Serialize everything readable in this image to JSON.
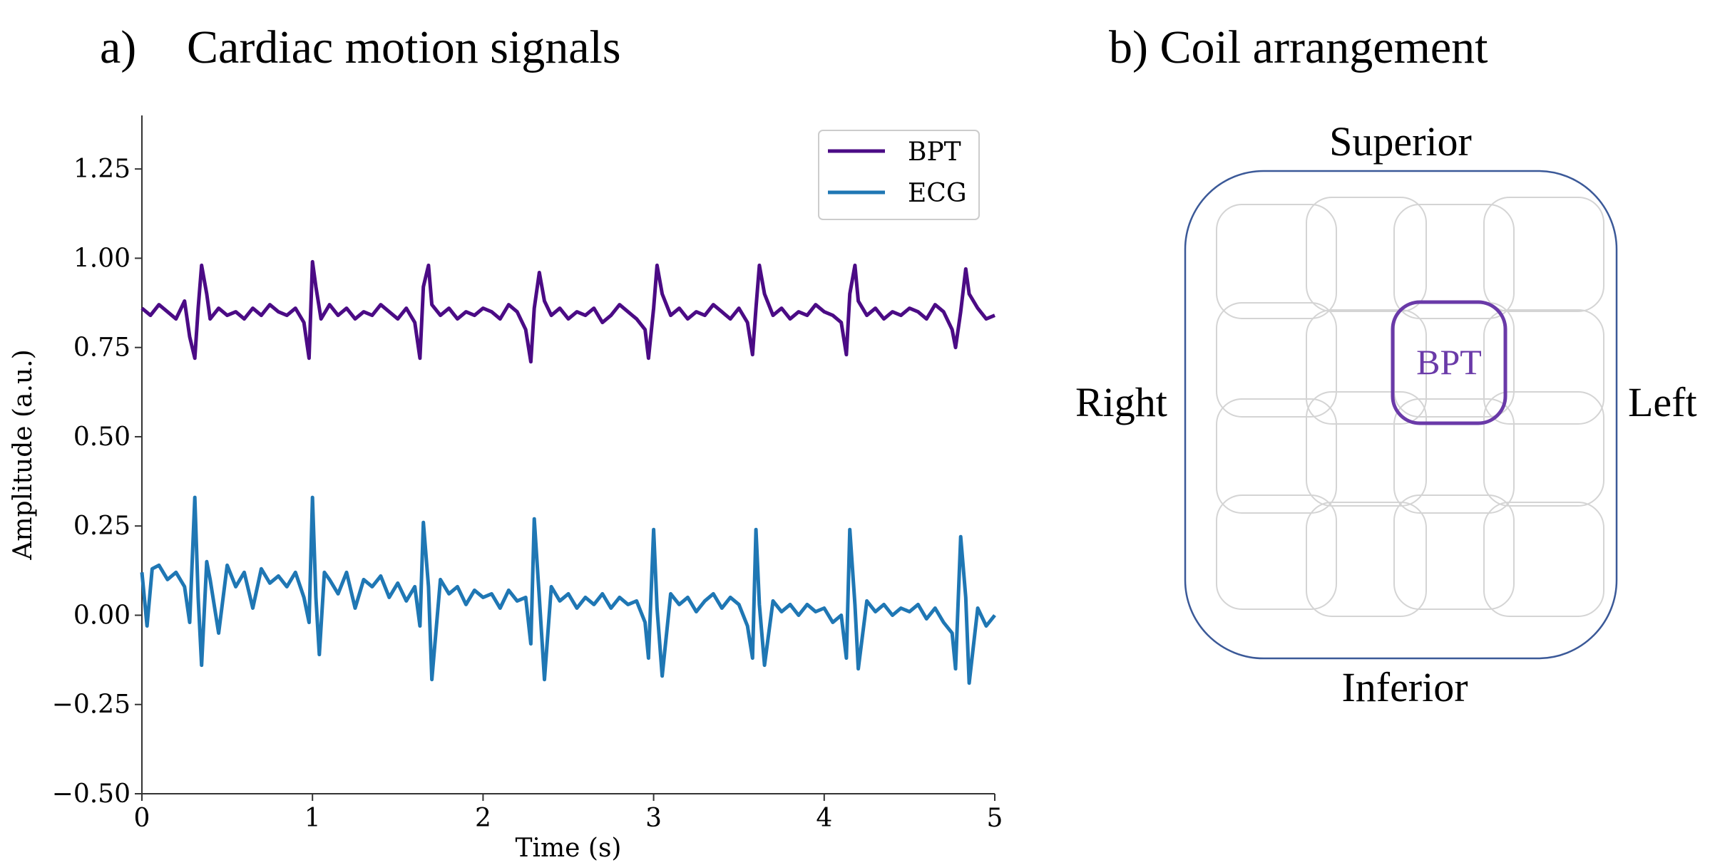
{
  "panel_a": {
    "label": "a)",
    "title": "Cardiac motion signals"
  },
  "panel_b": {
    "title": "b) Coil arrangement",
    "labels": {
      "top": "Superior",
      "bottom": "Inferior",
      "left": "Right",
      "right": "Left"
    },
    "highlight_label": "BPT",
    "colors": {
      "body": "#3b5998",
      "coil": "#d4d4d4",
      "highlight": "#6a3aa8"
    }
  },
  "chart_data": {
    "type": "line",
    "title": "Cardiac motion signals",
    "xlabel": "Time (s)",
    "ylabel": "Amplitude (a.u.)",
    "xlim": [
      0,
      5
    ],
    "ylim": [
      -0.5,
      1.4
    ],
    "xticks": [
      0,
      1,
      2,
      3,
      4,
      5
    ],
    "xtick_labels": [
      "0",
      "1",
      "2",
      "3",
      "4",
      "5"
    ],
    "yticks": [
      -0.5,
      -0.25,
      0,
      0.25,
      0.5,
      0.75,
      1.0,
      1.25
    ],
    "ytick_labels": [
      "−0.50",
      "−0.25",
      "0.00",
      "0.25",
      "0.50",
      "0.75",
      "1.00",
      "1.25"
    ],
    "grid": false,
    "legend_position": "top-right",
    "series": [
      {
        "name": "BPT",
        "color": "#4b0b85",
        "x": [
          0,
          0.05,
          0.1,
          0.15,
          0.2,
          0.25,
          0.28,
          0.31,
          0.33,
          0.35,
          0.38,
          0.4,
          0.45,
          0.5,
          0.55,
          0.6,
          0.65,
          0.7,
          0.75,
          0.8,
          0.85,
          0.9,
          0.95,
          0.98,
          1.0,
          1.02,
          1.05,
          1.1,
          1.15,
          1.2,
          1.25,
          1.3,
          1.35,
          1.4,
          1.45,
          1.5,
          1.55,
          1.6,
          1.63,
          1.65,
          1.68,
          1.7,
          1.75,
          1.8,
          1.85,
          1.9,
          1.95,
          2.0,
          2.05,
          2.1,
          2.15,
          2.2,
          2.25,
          2.28,
          2.3,
          2.33,
          2.36,
          2.4,
          2.45,
          2.5,
          2.55,
          2.6,
          2.65,
          2.7,
          2.75,
          2.8,
          2.85,
          2.9,
          2.95,
          2.97,
          3.0,
          3.02,
          3.05,
          3.1,
          3.15,
          3.2,
          3.25,
          3.3,
          3.35,
          3.4,
          3.45,
          3.5,
          3.55,
          3.58,
          3.6,
          3.62,
          3.65,
          3.7,
          3.75,
          3.8,
          3.85,
          3.9,
          3.95,
          4.0,
          4.05,
          4.1,
          4.13,
          4.15,
          4.18,
          4.2,
          4.25,
          4.3,
          4.35,
          4.4,
          4.45,
          4.5,
          4.55,
          4.6,
          4.65,
          4.7,
          4.75,
          4.77,
          4.8,
          4.83,
          4.85,
          4.9,
          4.95,
          5.0
        ],
        "y": [
          0.86,
          0.84,
          0.87,
          0.85,
          0.83,
          0.88,
          0.78,
          0.72,
          0.86,
          0.98,
          0.9,
          0.83,
          0.86,
          0.84,
          0.85,
          0.83,
          0.86,
          0.84,
          0.87,
          0.85,
          0.84,
          0.86,
          0.82,
          0.72,
          0.99,
          0.92,
          0.83,
          0.87,
          0.84,
          0.86,
          0.83,
          0.85,
          0.84,
          0.87,
          0.85,
          0.83,
          0.86,
          0.82,
          0.72,
          0.92,
          0.98,
          0.87,
          0.84,
          0.86,
          0.83,
          0.85,
          0.84,
          0.86,
          0.85,
          0.83,
          0.87,
          0.85,
          0.8,
          0.71,
          0.86,
          0.96,
          0.88,
          0.84,
          0.86,
          0.83,
          0.85,
          0.84,
          0.86,
          0.82,
          0.84,
          0.87,
          0.85,
          0.83,
          0.8,
          0.72,
          0.86,
          0.98,
          0.9,
          0.84,
          0.86,
          0.83,
          0.85,
          0.84,
          0.87,
          0.85,
          0.83,
          0.86,
          0.82,
          0.73,
          0.86,
          0.98,
          0.9,
          0.84,
          0.86,
          0.83,
          0.85,
          0.84,
          0.87,
          0.85,
          0.84,
          0.82,
          0.73,
          0.9,
          0.98,
          0.88,
          0.84,
          0.86,
          0.83,
          0.85,
          0.84,
          0.86,
          0.85,
          0.83,
          0.87,
          0.85,
          0.8,
          0.75,
          0.85,
          0.97,
          0.9,
          0.86,
          0.83,
          0.84
        ]
      },
      {
        "name": "ECG",
        "color": "#1f77b4",
        "x": [
          0,
          0.03,
          0.06,
          0.1,
          0.15,
          0.2,
          0.25,
          0.28,
          0.31,
          0.33,
          0.35,
          0.38,
          0.4,
          0.45,
          0.5,
          0.55,
          0.6,
          0.65,
          0.7,
          0.75,
          0.8,
          0.85,
          0.9,
          0.95,
          0.98,
          1.0,
          1.02,
          1.04,
          1.07,
          1.1,
          1.15,
          1.2,
          1.25,
          1.3,
          1.35,
          1.4,
          1.45,
          1.5,
          1.55,
          1.6,
          1.63,
          1.65,
          1.68,
          1.7,
          1.75,
          1.8,
          1.85,
          1.9,
          1.95,
          2.0,
          2.05,
          2.1,
          2.15,
          2.2,
          2.25,
          2.28,
          2.3,
          2.33,
          2.36,
          2.4,
          2.45,
          2.5,
          2.55,
          2.6,
          2.65,
          2.7,
          2.75,
          2.8,
          2.85,
          2.9,
          2.95,
          2.97,
          3.0,
          3.02,
          3.05,
          3.1,
          3.15,
          3.2,
          3.25,
          3.3,
          3.35,
          3.4,
          3.45,
          3.5,
          3.55,
          3.58,
          3.6,
          3.62,
          3.65,
          3.7,
          3.75,
          3.8,
          3.85,
          3.9,
          3.95,
          4.0,
          4.05,
          4.1,
          4.13,
          4.15,
          4.18,
          4.2,
          4.25,
          4.3,
          4.35,
          4.4,
          4.45,
          4.5,
          4.55,
          4.6,
          4.65,
          4.7,
          4.75,
          4.77,
          4.8,
          4.83,
          4.85,
          4.9,
          4.95,
          5.0
        ],
        "y": [
          0.12,
          -0.03,
          0.13,
          0.14,
          0.1,
          0.12,
          0.08,
          -0.02,
          0.33,
          0.05,
          -0.14,
          0.15,
          0.1,
          -0.05,
          0.14,
          0.08,
          0.12,
          0.02,
          0.13,
          0.09,
          0.11,
          0.08,
          0.12,
          0.05,
          -0.02,
          0.33,
          0.05,
          -0.11,
          0.12,
          0.1,
          0.06,
          0.12,
          0.02,
          0.1,
          0.08,
          0.11,
          0.05,
          0.09,
          0.04,
          0.08,
          -0.03,
          0.26,
          0.08,
          -0.18,
          0.1,
          0.06,
          0.08,
          0.03,
          0.07,
          0.05,
          0.06,
          0.02,
          0.07,
          0.04,
          0.05,
          -0.08,
          0.27,
          0.05,
          -0.18,
          0.08,
          0.04,
          0.06,
          0.02,
          0.05,
          0.03,
          0.06,
          0.02,
          0.05,
          0.03,
          0.04,
          -0.02,
          -0.12,
          0.24,
          0.02,
          -0.17,
          0.06,
          0.03,
          0.05,
          0.01,
          0.04,
          0.06,
          0.02,
          0.05,
          0.03,
          -0.03,
          -0.12,
          0.24,
          0.03,
          -0.14,
          0.04,
          0.01,
          0.03,
          0.0,
          0.03,
          0.01,
          0.02,
          -0.02,
          0.0,
          -0.12,
          0.24,
          0.03,
          -0.15,
          0.04,
          0.01,
          0.03,
          0.0,
          0.02,
          0.01,
          0.03,
          -0.01,
          0.02,
          -0.02,
          -0.05,
          -0.15,
          0.22,
          0.05,
          -0.19,
          0.02,
          -0.03,
          0.0
        ]
      }
    ]
  }
}
